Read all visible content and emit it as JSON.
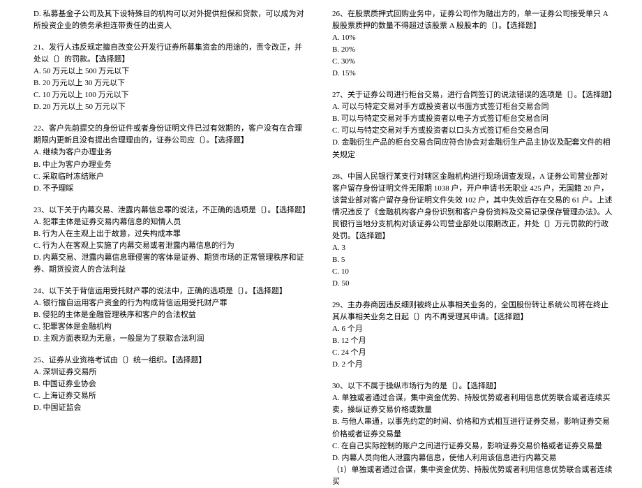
{
  "left": {
    "orphanD": "D. 私募基金子公司及其下设特殊目的机构可以对外提供担保和贷款，可以成为对所投资企业的债务承担连带责任的出资人",
    "q21": {
      "stem": "21、发行人违反规定擅自改变公开发行证券所募集资金的用途的，责令改正，并处以〔〕的罚款。【选择题】",
      "a": "A. 50 万元以上 500 万元以下",
      "b": "B. 20 万元以上 30 万元以下",
      "c": "C. 10 万元以上 100 万元以下",
      "d": "D. 20 万元以上 50 万元以下"
    },
    "q22": {
      "stem": "22、客户先前提交的身份证件或者身份证明文件已过有效期的，客户没有在合理期限内更新且没有提出合理理由的，证券公司应〔〕。【选择题】",
      "a": "A. 继续为客户办理业务",
      "b": "B. 中止为客户办理业务",
      "c": "C. 采取临时冻结账户",
      "d": "D. 不予理睬"
    },
    "q23": {
      "stem": "23、以下关于内幕交易、泄露内幕信息罪的说法，不正确的选项是〔〕。【选择题】",
      "a": "A. 犯罪主体是证券交易内幕信息的知情人员",
      "b": "B. 行为人在主观上出于故意，过失构成本罪",
      "c": "C. 行为人在客观上实施了内幕交易或者泄露内幕信息的行为",
      "d": "D. 内幕交易、泄露内幕信息罪侵害的客体是证券、期货市场的正常管理秩序和证券、期货投资人的合法利益"
    },
    "q24": {
      "stem": "24、以下关于背信运用受托财产罪的说法中，正确的选项是〔〕。【选择题】",
      "a": "A. 银行擅自运用客户资金的行为构成背信运用受托财产罪",
      "b": "B. 侵犯的主体是金融管理秩序和客户的合法权益",
      "c": "C. 犯罪客体是金融机构",
      "d": "D. 主观方面表现为无意，一般是为了获取合法利润"
    },
    "q25": {
      "stem": "25、证券从业资格考试由〔〕统一组织。【选择题】",
      "a": "A. 深圳证券交易所",
      "b": "B. 中国证券业协会",
      "c": "C. 上海证券交易所",
      "d": "D. 中国证监会"
    }
  },
  "right": {
    "q26": {
      "stem": "26、在股票质押式回购业务中，证券公司作为融出方的，单一证券公司接受单只 A 股股票质押的数量不得超过该股票 A 股股本的〔〕。【选择题】",
      "a": "A. 10%",
      "b": "B. 20%",
      "c": "C. 30%",
      "d": "D. 15%"
    },
    "q27": {
      "stem": "27、关于证券公司进行柜台交易，进行合同签订的说法错误的选项是〔〕。【选择题】",
      "a": "A. 可以与特定交易对手方或投资者以书面方式签订柜台交易合同",
      "b": "B. 可以与特定交易对手方或投资者以电子方式签订柜台交易合同",
      "c": "C. 可以与特定交易对手方或投资者以口头方式签订柜台交易合同",
      "d": "D. 金融衍生产品的柜台交易合同应符合协会对金融衍生产品主协议及配套文件的相关规定"
    },
    "q28": {
      "stem": "28、中国人民银行某支行对辖区金融机构进行现场调查发现，A 证券公司营业部对客户留存身份证明文件无限期 1038 户，开户申请书无职业 425 户，无国籍 20 户，该营业部对客户留存身份证明文件失效 102 户，其中失效后存在交易的 61 户。上述情况违反了《金融机构客户身份识别和客户身份资料及交易记录保存管理办法》。人民银行当地分支机构对该证券公司营业部处以限期改正，并处〔〕万元罚款的行政处罚。【选择题】",
      "a": "A. 3",
      "b": "B. 5",
      "c": "C. 10",
      "d": "D. 50"
    },
    "q29": {
      "stem": "29、主办券商因违反细则被终止从事相关业务的，全国股份转让系统公司将在终止其从事相关业务之日起〔〕内不再受理其申请。【选择题】",
      "a": "A. 6 个月",
      "b": "B. 12 个月",
      "c": "C. 24 个月",
      "d": "D. 2 个月"
    },
    "q30": {
      "stem": "30、以下不属于操纵市场行为的是〔〕。【选择题】",
      "a": "A. 单独或者通过合谋，集中资金优势、持股优势或者利用信息优势联合或者连续买卖，操纵证券交易价格或数量",
      "b": "B. 与他人串通，以事先约定的时间、价格和方式相互进行证券交易，影响证券交易价格或者证券交易量",
      "c": "C. 在自己实际控制的账户之间进行证券交易，影响证券交易价格或者证券交易量",
      "d": "D. 内幕人员向他人泄露内幕信息，使他人利用该信息进行内幕交易",
      "extra": "（1）单独或者通过合谋，集中资金优势、持股优势或者利用信息优势联合或者连续买"
    }
  }
}
